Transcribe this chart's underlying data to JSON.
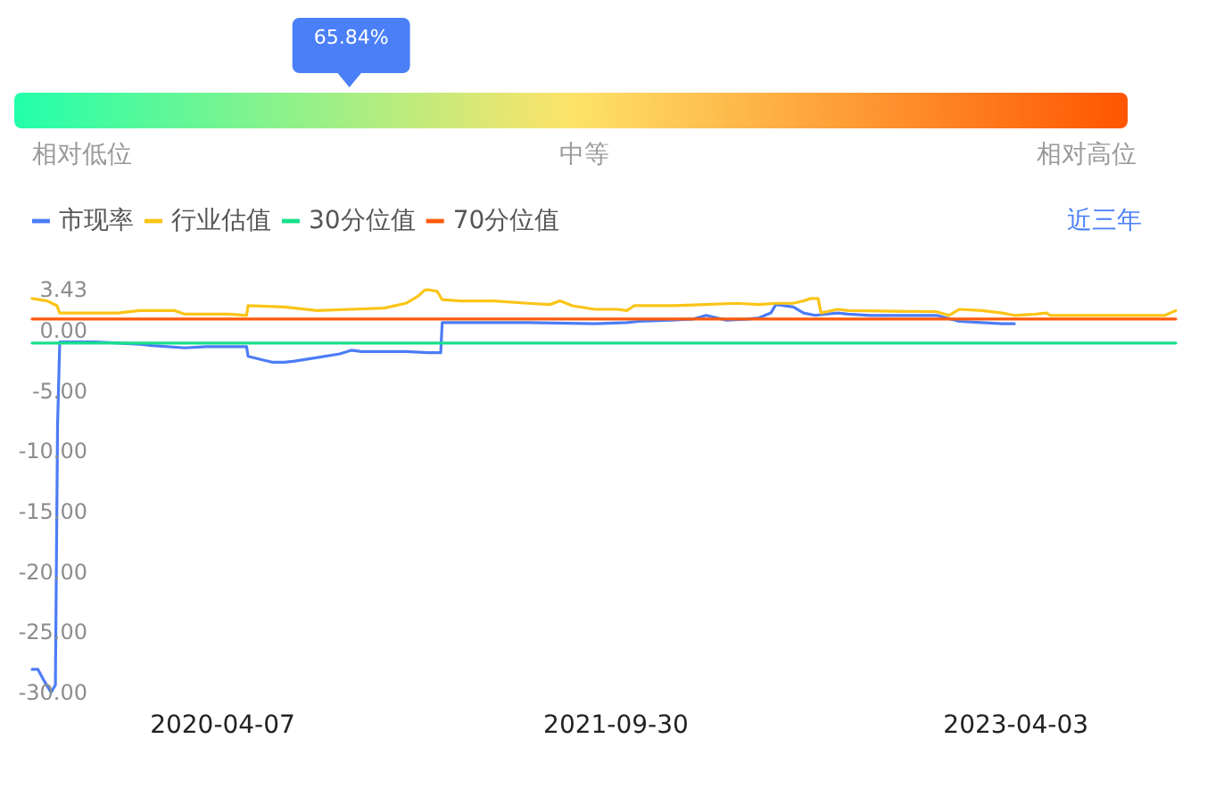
{
  "chart_data": [
    {
      "type": "other",
      "categories": [
        "相对低位",
        "中等",
        "相对高位"
      ],
      "colors": [
        "#22ffaa",
        "#fde36a",
        "#ff5500"
      ],
      "annotations": [
        "65.84%"
      ]
    },
    {
      "type": "line",
      "legend": "top left",
      "line_style": "solid",
      "xlim": [
        "2019-07-20",
        "2023-11-09"
      ],
      "xticks": [
        "2020-04-07",
        "2021-09-30",
        "2023-04-03"
      ],
      "ylim": [
        -30,
        3.43
      ],
      "yticks": [
        {
          "value": 3.43,
          "label": "3.43"
        },
        {
          "value": 0,
          "label": "0.00"
        },
        {
          "value": -5,
          "label": "-5.00"
        },
        {
          "value": -10,
          "label": "-10.00"
        },
        {
          "value": -15,
          "label": "-15.00"
        },
        {
          "value": -20,
          "label": "-20.00"
        },
        {
          "value": -25,
          "label": "-25.00"
        },
        {
          "value": -30,
          "label": "-30.00"
        }
      ],
      "annotations": [
        "近三年"
      ],
      "series": [
        {
          "name": "市现率",
          "color": "#4c7cf6",
          "x": [
            "2019-07-20",
            "2019-07-28",
            "2019-08-05",
            "2019-08-15",
            "2019-08-21",
            "2019-08-24",
            "2019-08-27",
            "2019-09-15",
            "2019-10-15",
            "2019-11-15",
            "2019-12-15",
            "2020-01-01",
            "2020-02-15",
            "2020-03-15",
            "2020-04-15",
            "2020-05-10",
            "2020-05-12",
            "2020-06-01",
            "2020-06-15",
            "2020-07-01",
            "2020-07-15",
            "2020-08-15",
            "2020-09-15",
            "2020-10-01",
            "2020-10-15",
            "2020-11-15",
            "2020-12-15",
            "2021-01-15",
            "2021-02-01",
            "2021-02-03",
            "2021-03-01",
            "2021-06-01",
            "2021-09-01",
            "2021-10-15",
            "2021-11-01",
            "2021-12-15",
            "2022-01-15",
            "2022-02-01",
            "2022-02-15",
            "2022-03-01",
            "2022-04-01",
            "2022-04-15",
            "2022-05-01",
            "2022-05-08",
            "2022-06-01",
            "2022-06-15",
            "2022-07-01",
            "2022-07-15",
            "2022-08-01",
            "2022-08-15",
            "2022-09-15",
            "2022-12-15",
            "2023-01-15",
            "2023-02-15",
            "2023-03-15",
            "2023-04-01"
          ],
          "values": [
            -28.1,
            -28.1,
            -29.0,
            -30.0,
            -29.4,
            -7.8,
            -0.9,
            -0.9,
            -0.9,
            -1.0,
            -1.1,
            -1.2,
            -1.4,
            -1.3,
            -1.3,
            -1.3,
            -2.1,
            -2.4,
            -2.6,
            -2.6,
            -2.5,
            -2.2,
            -1.9,
            -1.6,
            -1.7,
            -1.7,
            -1.7,
            -1.8,
            -1.8,
            0.7,
            0.7,
            0.7,
            0.6,
            0.7,
            0.8,
            0.9,
            1.0,
            1.3,
            1.1,
            0.9,
            1.0,
            1.1,
            1.5,
            2.2,
            2.0,
            1.5,
            1.3,
            1.4,
            1.5,
            1.4,
            1.3,
            1.3,
            0.8,
            0.7,
            0.6,
            0.6
          ]
        },
        {
          "name": "行业估值",
          "color": "#fbc416",
          "x": [
            "2019-07-20",
            "2019-08-10",
            "2019-08-23",
            "2019-08-27",
            "2019-10-15",
            "2019-11-15",
            "2019-12-15",
            "2020-02-01",
            "2020-02-15",
            "2020-04-15",
            "2020-05-10",
            "2020-05-12",
            "2020-07-01",
            "2020-07-15",
            "2020-08-15",
            "2020-10-01",
            "2020-11-15",
            "2020-12-15",
            "2021-01-01",
            "2021-01-10",
            "2021-01-15",
            "2021-01-27",
            "2021-02-03",
            "2021-03-01",
            "2021-04-15",
            "2021-06-01",
            "2021-07-01",
            "2021-07-15",
            "2021-08-01",
            "2021-09-01",
            "2021-10-01",
            "2021-10-15",
            "2021-10-25",
            "2021-12-15",
            "2022-02-01",
            "2022-03-15",
            "2022-04-15",
            "2022-05-08",
            "2022-06-01",
            "2022-06-15",
            "2022-06-25",
            "2022-07-05",
            "2022-07-09",
            "2022-08-01",
            "2022-08-15",
            "2022-12-15",
            "2023-01-01",
            "2023-01-15",
            "2023-02-15",
            "2023-03-15",
            "2023-04-01",
            "2023-05-01",
            "2023-05-15",
            "2023-05-20",
            "2023-07-01",
            "2023-10-01",
            "2023-10-25",
            "2023-11-09"
          ],
          "values": [
            2.7,
            2.5,
            2.1,
            1.5,
            1.5,
            1.5,
            1.7,
            1.7,
            1.4,
            1.4,
            1.3,
            2.1,
            2.0,
            1.9,
            1.7,
            1.8,
            1.9,
            2.3,
            2.9,
            3.4,
            3.43,
            3.3,
            2.6,
            2.5,
            2.5,
            2.3,
            2.2,
            2.5,
            2.1,
            1.8,
            1.8,
            1.7,
            2.1,
            2.1,
            2.2,
            2.3,
            2.2,
            2.3,
            2.3,
            2.5,
            2.7,
            2.7,
            1.5,
            1.8,
            1.7,
            1.6,
            1.3,
            1.8,
            1.7,
            1.5,
            1.3,
            1.4,
            1.5,
            1.3,
            1.3,
            1.3,
            1.3,
            1.7
          ]
        },
        {
          "name": "30分位值",
          "color": "#17e08a",
          "x": [
            "2019-07-20",
            "2023-11-09"
          ],
          "values": [
            -1.0,
            -1.0
          ]
        },
        {
          "name": "70分位值",
          "color": "#ff5a0a",
          "x": [
            "2019-07-20",
            "2023-11-09"
          ],
          "values": [
            1.0,
            1.0
          ]
        }
      ]
    }
  ]
}
